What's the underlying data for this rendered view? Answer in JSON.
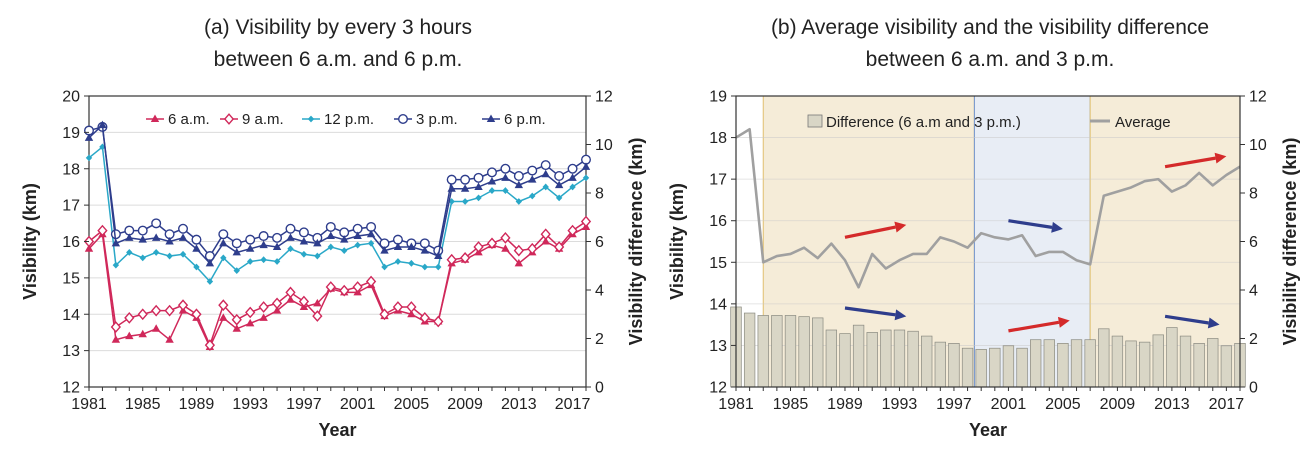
{
  "chart_data": [
    {
      "type": "line",
      "title_lines": [
        "(a) Visibility by every 3 hours",
        "between 6 a.m. and 6 p.m."
      ],
      "xlabel": "Year",
      "ylabel": "Visibility (km)",
      "y2label": "Visibility difference (km)",
      "xlim": [
        1981,
        2018
      ],
      "ylim": [
        12,
        20
      ],
      "y2lim": [
        0,
        12
      ],
      "xticks": [
        "1981",
        "1985",
        "1989",
        "1993",
        "1997",
        "2001",
        "2005",
        "2009",
        "2013",
        "2017"
      ],
      "yticks": [
        "12",
        "13",
        "14",
        "15",
        "16",
        "17",
        "18",
        "19",
        "20"
      ],
      "y2ticks": [
        "0",
        "2",
        "4",
        "6",
        "8",
        "10",
        "12"
      ],
      "x": [
        1981,
        1982,
        1983,
        1984,
        1985,
        1986,
        1987,
        1988,
        1989,
        1990,
        1991,
        1992,
        1993,
        1994,
        1995,
        1996,
        1997,
        1998,
        1999,
        2000,
        2001,
        2002,
        2003,
        2004,
        2005,
        2006,
        2007,
        2008,
        2009,
        2010,
        2011,
        2012,
        2013,
        2014,
        2015,
        2016,
        2017,
        2018
      ],
      "series": [
        {
          "name": "6 a.m.",
          "color": "#d0285a",
          "marker": "triangle",
          "values": [
            15.8,
            16.2,
            13.3,
            13.4,
            13.45,
            13.6,
            13.3,
            14.1,
            13.9,
            13.1,
            13.9,
            13.6,
            13.75,
            13.9,
            14.1,
            14.4,
            14.2,
            14.3,
            14.7,
            14.6,
            14.6,
            14.8,
            13.95,
            14.1,
            14.0,
            13.8,
            13.8,
            15.4,
            15.5,
            15.7,
            15.9,
            15.8,
            15.4,
            15.7,
            16.0,
            15.8,
            16.2,
            16.4
          ]
        },
        {
          "name": "9 a.m.",
          "color": "#d0285a",
          "marker": "diamond",
          "values": [
            16.0,
            16.3,
            13.65,
            13.9,
            14.0,
            14.1,
            14.1,
            14.25,
            14.0,
            13.15,
            14.25,
            13.85,
            14.05,
            14.2,
            14.3,
            14.6,
            14.35,
            13.95,
            14.75,
            14.65,
            14.75,
            14.9,
            14.0,
            14.2,
            14.2,
            13.9,
            13.8,
            15.5,
            15.55,
            15.85,
            15.95,
            16.1,
            15.75,
            15.8,
            16.2,
            15.85,
            16.3,
            16.55
          ]
        },
        {
          "name": "12 p.m.",
          "color": "#2aa8c8",
          "marker": "dot",
          "values": [
            18.3,
            18.6,
            15.35,
            15.7,
            15.55,
            15.7,
            15.6,
            15.65,
            15.3,
            14.9,
            15.55,
            15.2,
            15.45,
            15.5,
            15.45,
            15.8,
            15.65,
            15.6,
            15.85,
            15.75,
            15.9,
            15.95,
            15.3,
            15.45,
            15.4,
            15.3,
            15.3,
            17.1,
            17.1,
            17.2,
            17.4,
            17.4,
            17.1,
            17.25,
            17.5,
            17.2,
            17.5,
            17.75
          ]
        },
        {
          "name": "3 p.m.",
          "color": "#2e3d8c",
          "marker": "circle",
          "values": [
            19.05,
            19.15,
            16.2,
            16.3,
            16.3,
            16.5,
            16.2,
            16.35,
            16.05,
            15.6,
            16.2,
            15.95,
            16.05,
            16.15,
            16.1,
            16.35,
            16.25,
            16.1,
            16.4,
            16.25,
            16.35,
            16.4,
            15.95,
            16.05,
            15.95,
            15.95,
            15.75,
            17.7,
            17.7,
            17.75,
            17.9,
            18.0,
            17.8,
            17.95,
            18.1,
            17.8,
            18.0,
            18.25
          ]
        },
        {
          "name": "6 p.m.",
          "color": "#2e3d8c",
          "marker": "triangle",
          "values": [
            18.85,
            19.2,
            15.95,
            16.1,
            16.05,
            16.1,
            16.0,
            16.1,
            15.8,
            15.4,
            15.95,
            15.7,
            15.8,
            15.9,
            15.85,
            16.1,
            16.0,
            15.95,
            16.15,
            16.05,
            16.15,
            16.2,
            15.75,
            15.85,
            15.85,
            15.75,
            15.6,
            17.45,
            17.45,
            17.5,
            17.65,
            17.75,
            17.55,
            17.7,
            17.85,
            17.55,
            17.75,
            18.05
          ]
        }
      ]
    },
    {
      "type": "bar+line",
      "title_lines": [
        "(b) Average visibility and the visibility difference",
        "between 6 a.m. and 3 p.m."
      ],
      "xlabel": "Year",
      "ylabel": "Visibility (km)",
      "y2label": "Visibility difference (km)",
      "xlim": [
        1981,
        2018
      ],
      "ylim": [
        12,
        19
      ],
      "y2lim": [
        0,
        12
      ],
      "xticks": [
        "1981",
        "1985",
        "1989",
        "1993",
        "1997",
        "2001",
        "2005",
        "2009",
        "2013",
        "2017"
      ],
      "yticks": [
        "12",
        "13",
        "14",
        "15",
        "16",
        "17",
        "18",
        "19"
      ],
      "y2ticks": [
        "0",
        "2",
        "4",
        "6",
        "8",
        "10",
        "12"
      ],
      "x": [
        1981,
        1982,
        1983,
        1984,
        1985,
        1986,
        1987,
        1988,
        1989,
        1990,
        1991,
        1992,
        1993,
        1994,
        1995,
        1996,
        1997,
        1998,
        1999,
        2000,
        2001,
        2002,
        2003,
        2004,
        2005,
        2006,
        2007,
        2008,
        2009,
        2010,
        2011,
        2012,
        2013,
        2014,
        2015,
        2016,
        2017,
        2018
      ],
      "bar_series": {
        "name": "Difference (6 a.m and 3 p.m.)",
        "axis": "right",
        "color": "#d9d6c6",
        "values": [
          3.3,
          3.05,
          2.95,
          2.95,
          2.95,
          2.9,
          2.85,
          2.35,
          2.2,
          2.55,
          2.25,
          2.35,
          2.35,
          2.3,
          2.1,
          1.85,
          1.8,
          1.6,
          1.55,
          1.6,
          1.7,
          1.6,
          1.95,
          1.95,
          1.8,
          1.95,
          1.95,
          2.4,
          2.1,
          1.9,
          1.85,
          2.15,
          2.45,
          2.1,
          1.8,
          2.0,
          1.7,
          1.8
        ]
      },
      "line_series": {
        "name": "Average",
        "axis": "left",
        "color": "#a0a0a0",
        "values": [
          18.0,
          18.2,
          15.0,
          15.15,
          15.2,
          15.35,
          15.1,
          15.45,
          15.05,
          14.4,
          15.2,
          14.85,
          15.05,
          15.2,
          15.2,
          15.6,
          15.5,
          15.35,
          15.7,
          15.6,
          15.55,
          15.65,
          15.15,
          15.25,
          15.25,
          15.05,
          14.95,
          16.6,
          16.7,
          16.8,
          16.95,
          17.0,
          16.7,
          16.85,
          17.15,
          16.85,
          17.1,
          17.3
        ]
      },
      "shaded_periods": [
        {
          "from": 1983,
          "to": 1998.5,
          "color": "#f5ecd8",
          "edge": "#e0c070"
        },
        {
          "from": 1998.5,
          "to": 2007,
          "color": "#e8edf5",
          "edge": "#7090c8"
        },
        {
          "from": 2007,
          "to": 2018.2,
          "color": "#f5ecd8",
          "edge": "#e0c070"
        }
      ],
      "arrows": [
        {
          "x0": 1989,
          "y0": 15.6,
          "x1": 1993.5,
          "y1": 15.9,
          "color": "#d42a2a"
        },
        {
          "x0": 1989,
          "y0": 13.9,
          "x1": 1993.5,
          "y1": 13.7,
          "color": "#2e3d8c"
        },
        {
          "x0": 2001,
          "y0": 16.0,
          "x1": 2005,
          "y1": 15.8,
          "color": "#2e3d8c"
        },
        {
          "x0": 2001,
          "y0": 13.35,
          "x1": 2005.5,
          "y1": 13.6,
          "color": "#d42a2a"
        },
        {
          "x0": 2012.5,
          "y0": 17.3,
          "x1": 2017,
          "y1": 17.55,
          "color": "#d42a2a"
        },
        {
          "x0": 2012.5,
          "y0": 13.7,
          "x1": 2016.5,
          "y1": 13.5,
          "color": "#2e3d8c"
        }
      ]
    }
  ]
}
